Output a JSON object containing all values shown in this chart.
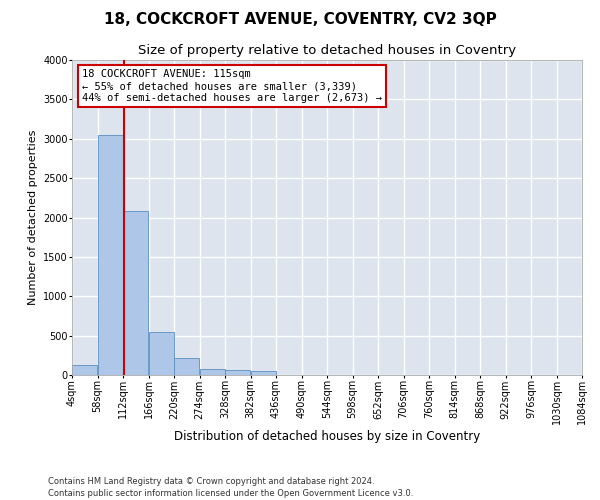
{
  "title": "18, COCKCROFT AVENUE, COVENTRY, CV2 3QP",
  "subtitle": "Size of property relative to detached houses in Coventry",
  "xlabel": "Distribution of detached houses by size in Coventry",
  "ylabel": "Number of detached properties",
  "footer_line1": "Contains HM Land Registry data © Crown copyright and database right 2024.",
  "footer_line2": "Contains public sector information licensed under the Open Government Licence v3.0.",
  "annotation_title": "18 COCKCROFT AVENUE: 115sqm",
  "annotation_line1": "← 55% of detached houses are smaller (3,339)",
  "annotation_line2": "44% of semi-detached houses are larger (2,673) →",
  "bin_edges": [
    4,
    58,
    112,
    166,
    220,
    274,
    328,
    382,
    436,
    490,
    544,
    598,
    652,
    706,
    760,
    814,
    868,
    922,
    976,
    1030,
    1084
  ],
  "bar_heights": [
    130,
    3050,
    2080,
    540,
    210,
    80,
    60,
    50,
    0,
    0,
    0,
    0,
    0,
    0,
    0,
    0,
    0,
    0,
    0,
    0
  ],
  "bar_color": "#aec6e8",
  "bar_edge_color": "#5a8fc0",
  "vline_color": "#cc0000",
  "vline_x": 115,
  "annotation_box_color": "#cc0000",
  "ylim": [
    0,
    4000
  ],
  "yticks": [
    0,
    500,
    1000,
    1500,
    2000,
    2500,
    3000,
    3500,
    4000
  ],
  "background_color": "#dde4ee",
  "grid_color": "#ffffff",
  "fig_background": "#ffffff",
  "title_fontsize": 11,
  "subtitle_fontsize": 9.5,
  "axis_label_fontsize": 8,
  "tick_fontsize": 7,
  "footer_fontsize": 6
}
